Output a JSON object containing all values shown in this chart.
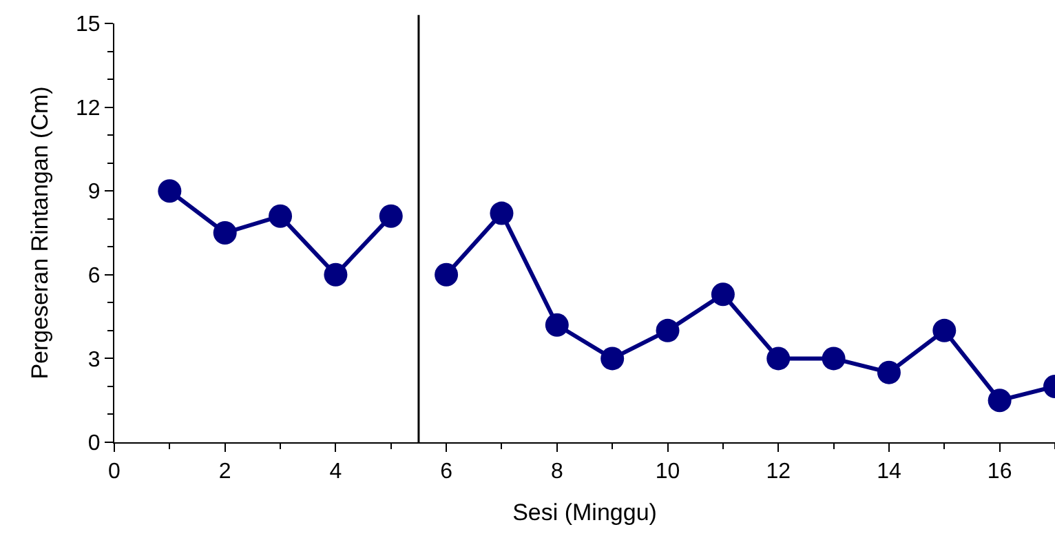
{
  "chart_data": {
    "type": "line",
    "xlabel": "Sesi (Minggu)",
    "ylabel": "Pergeseran Rintangan (Cm)",
    "series": [
      {
        "color": "#000080",
        "x": [
          1,
          2,
          3,
          4,
          5
        ],
        "values": [
          9,
          7.5,
          8.1,
          6,
          8.1
        ]
      },
      {
        "color": "#000080",
        "x": [
          6,
          7,
          8,
          9,
          10,
          11,
          12,
          13,
          14,
          15,
          16,
          17
        ],
        "values": [
          6,
          8.2,
          4.2,
          3,
          4,
          5.3,
          3,
          3,
          2.5,
          4,
          1.5,
          2
        ]
      }
    ],
    "xlim": [
      0,
      17
    ],
    "xticks": [
      0,
      2,
      4,
      6,
      8,
      10,
      12,
      14,
      16
    ],
    "ylim": [
      0,
      15
    ],
    "yticks": [
      0,
      3,
      6,
      9,
      12,
      15
    ],
    "ref_lines": [
      {
        "axis": "x",
        "value": 5.5,
        "color": "#000000"
      }
    ],
    "marker": "circle",
    "line_style": "solid"
  }
}
